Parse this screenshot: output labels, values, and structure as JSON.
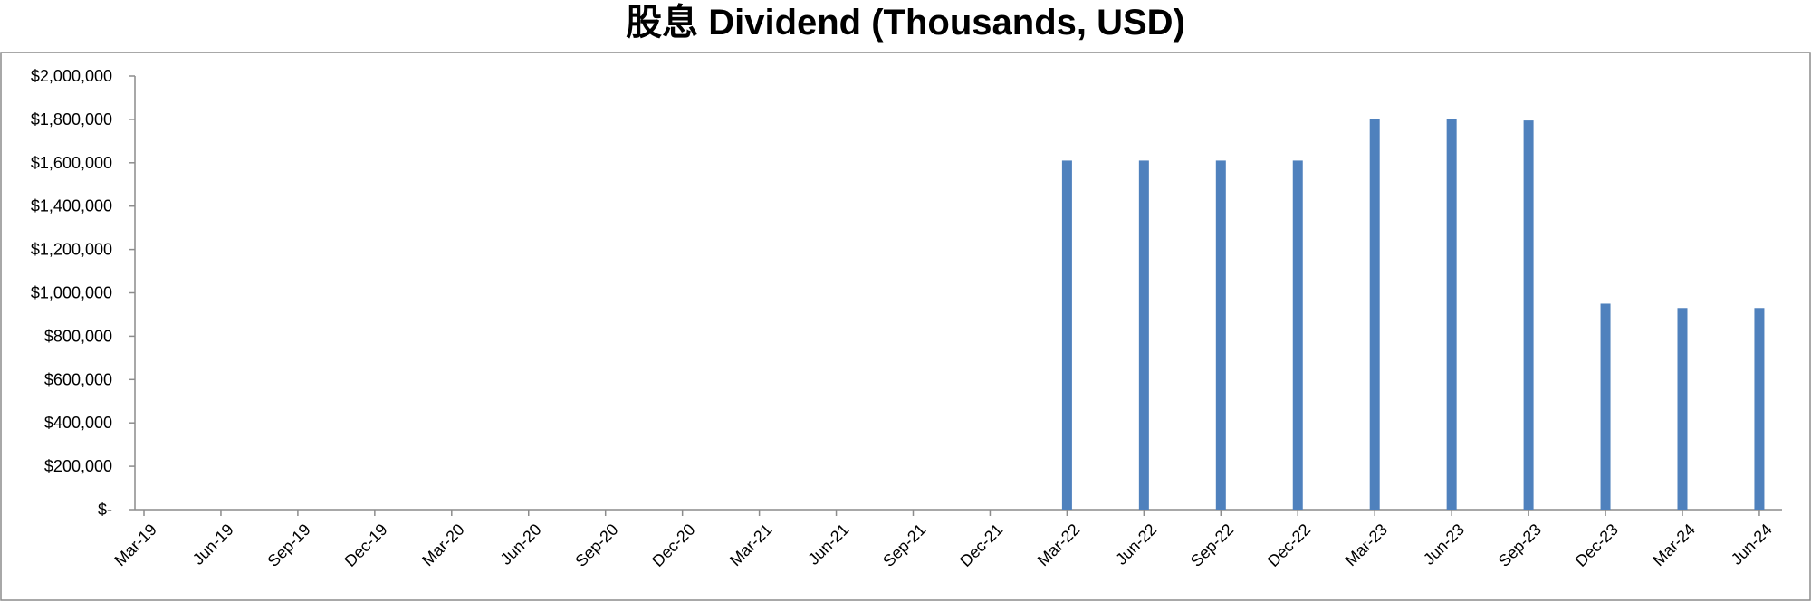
{
  "chart_data": {
    "type": "bar",
    "title": "股息 Dividend (Thousands, USD)",
    "xlabel": "",
    "ylabel": "",
    "ylim": [
      0,
      2000000
    ],
    "y_ticks": [
      0,
      200000,
      400000,
      600000,
      800000,
      1000000,
      1200000,
      1400000,
      1600000,
      1800000,
      2000000
    ],
    "y_tick_labels": [
      "$-",
      "$200,000",
      "$400,000",
      "$600,000",
      "$800,000",
      "$1,000,000",
      "$1,200,000",
      "$1,400,000",
      "$1,600,000",
      "$1,800,000",
      "$2,000,000"
    ],
    "categories": [
      "Mar-19",
      "Jun-19",
      "Sep-19",
      "Dec-19",
      "Mar-20",
      "Jun-20",
      "Sep-20",
      "Dec-20",
      "Mar-21",
      "Jun-21",
      "Sep-21",
      "Dec-21",
      "Mar-22",
      "Jun-22",
      "Sep-22",
      "Dec-22",
      "Mar-23",
      "Jun-23",
      "Sep-23",
      "Dec-23",
      "Mar-24",
      "Jun-24"
    ],
    "values": [
      0,
      0,
      0,
      0,
      0,
      0,
      0,
      0,
      0,
      0,
      0,
      0,
      1610000,
      1610000,
      1610000,
      1610000,
      1800000,
      1800000,
      1795000,
      950000,
      930000,
      930000
    ],
    "bar_color": "#4f81bd",
    "grid": false,
    "legend": "none"
  }
}
